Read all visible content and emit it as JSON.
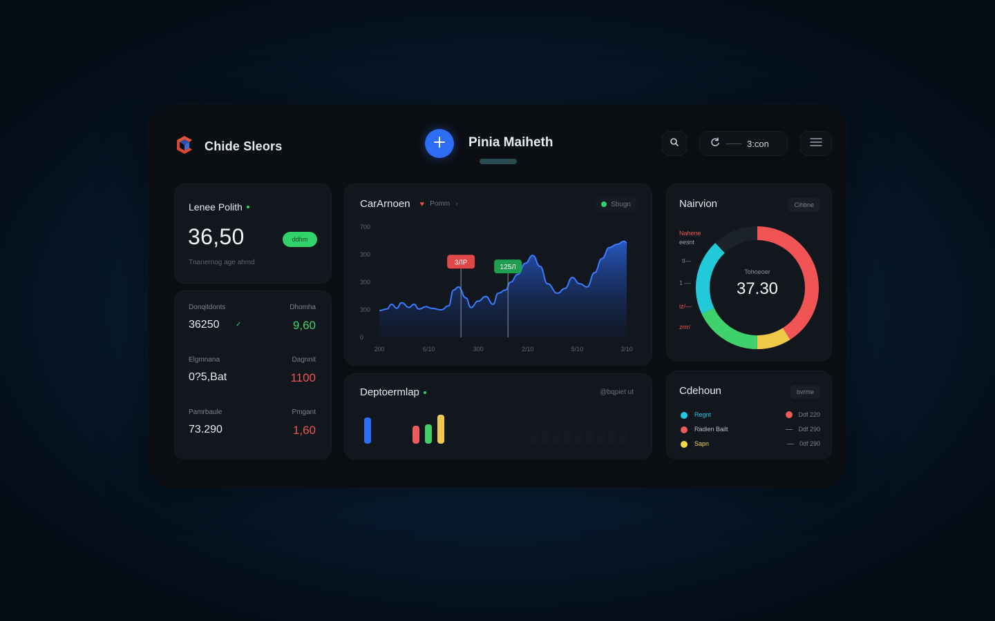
{
  "header": {
    "brand": "Chide Sleors",
    "page_title": "Pinia Maiheth",
    "time": "3:con"
  },
  "leads": {
    "title": "Lenee Polith",
    "value": "36,50",
    "badge": "ddhm",
    "subtitle": "Tnanernog age ahmd"
  },
  "stats": [
    {
      "label": "Donqitdonts",
      "right_label": "Dhomha",
      "value": "36250",
      "right_value": "9,60",
      "right_color": "#3fd16c",
      "check": "✓"
    },
    {
      "label": "Elgmnana",
      "right_label": "Dagnnit",
      "value": "0?5,Bat",
      "right_value": "1100",
      "right_color": "#ef5454"
    },
    {
      "label": "Pamrbaule",
      "right_label": "Pmgant",
      "value": "73.290",
      "right_value": "1,60",
      "right_color": "#ef5454"
    }
  ],
  "line_chart": {
    "title": "CarArnoen",
    "legend_text": "Pomm",
    "chevron": "›",
    "status": "Sbugn",
    "accent": "#2f6df6",
    "marker_red_color": "#e04848",
    "marker_green_color": "#1e9e4e"
  },
  "donut": {
    "title": "Nairvion",
    "chip": "Cihbne",
    "center_label": "Tohoeoer",
    "center_value": "37.30",
    "side_labels": [
      "Nahene",
      "eesnt",
      "tl—",
      "1 —",
      "iz/—",
      "zrrr/"
    ]
  },
  "department": {
    "title": "Deptoermlap",
    "link": "@bqpiet ut",
    "bars": [
      {
        "value": 38,
        "color": "#2f6df6"
      },
      {
        "value": 26,
        "color": "#ef5a5a"
      },
      {
        "value": 28,
        "color": "#3fd16c"
      },
      {
        "value": 42,
        "color": "#f0c84a"
      }
    ]
  },
  "legend_card": {
    "title": "Cdehoun",
    "chip": "bvrme",
    "rows": [
      {
        "color": "#1fc8e4",
        "name": "Regnt",
        "name_color": "#1fc8e4",
        "right": "Ddf 220",
        "right_marker": "dot",
        "right_color": "#ef5a5a"
      },
      {
        "color": "#ef5a5a",
        "name": "Radien Bailt",
        "name_color": "#b8c0cc",
        "right": "Ddf 290",
        "right_marker": "dash"
      },
      {
        "color": "#f0d94a",
        "name": "Sapn",
        "name_color": "#f0d94a",
        "right": "0df 290",
        "right_marker": "dash"
      }
    ]
  },
  "chart_data": [
    {
      "type": "area",
      "title": "CarArnoen",
      "ylim": [
        0,
        700
      ],
      "y_tick_labels": [
        "700",
        "300",
        "300",
        "300",
        "0"
      ],
      "x_tick_labels": [
        "200",
        "6/10",
        "300",
        "2/10",
        "5/10",
        "3/10"
      ],
      "xlim": [
        0,
        100
      ],
      "x": [
        0,
        3,
        5,
        7,
        9,
        12,
        14,
        16,
        19,
        21,
        25,
        28,
        30,
        32,
        35,
        37,
        40,
        43,
        46,
        48,
        51,
        53,
        56,
        59,
        62,
        65,
        68,
        72,
        75,
        78,
        81,
        84,
        87,
        90,
        93,
        96,
        99,
        100
      ],
      "y": [
        170,
        180,
        210,
        185,
        220,
        190,
        210,
        180,
        195,
        185,
        175,
        200,
        300,
        320,
        250,
        190,
        230,
        260,
        210,
        280,
        300,
        350,
        400,
        470,
        520,
        450,
        340,
        280,
        310,
        380,
        340,
        320,
        410,
        500,
        570,
        590,
        610,
        600
      ],
      "annotations": [
        {
          "label": "3ЛР",
          "x": 33,
          "y": 480,
          "color": "red"
        },
        {
          "label": "125Л",
          "x": 52,
          "y": 450,
          "color": "green"
        }
      ]
    },
    {
      "type": "pie",
      "title": "Nairvion",
      "center_value": "37.30",
      "values": [
        0.41,
        0.09,
        0.18,
        0.2,
        0.12
      ],
      "colors": [
        "#f05454",
        "#f0c84a",
        "#3fd16c",
        "#22c9d8",
        "#1c222a"
      ]
    }
  ]
}
